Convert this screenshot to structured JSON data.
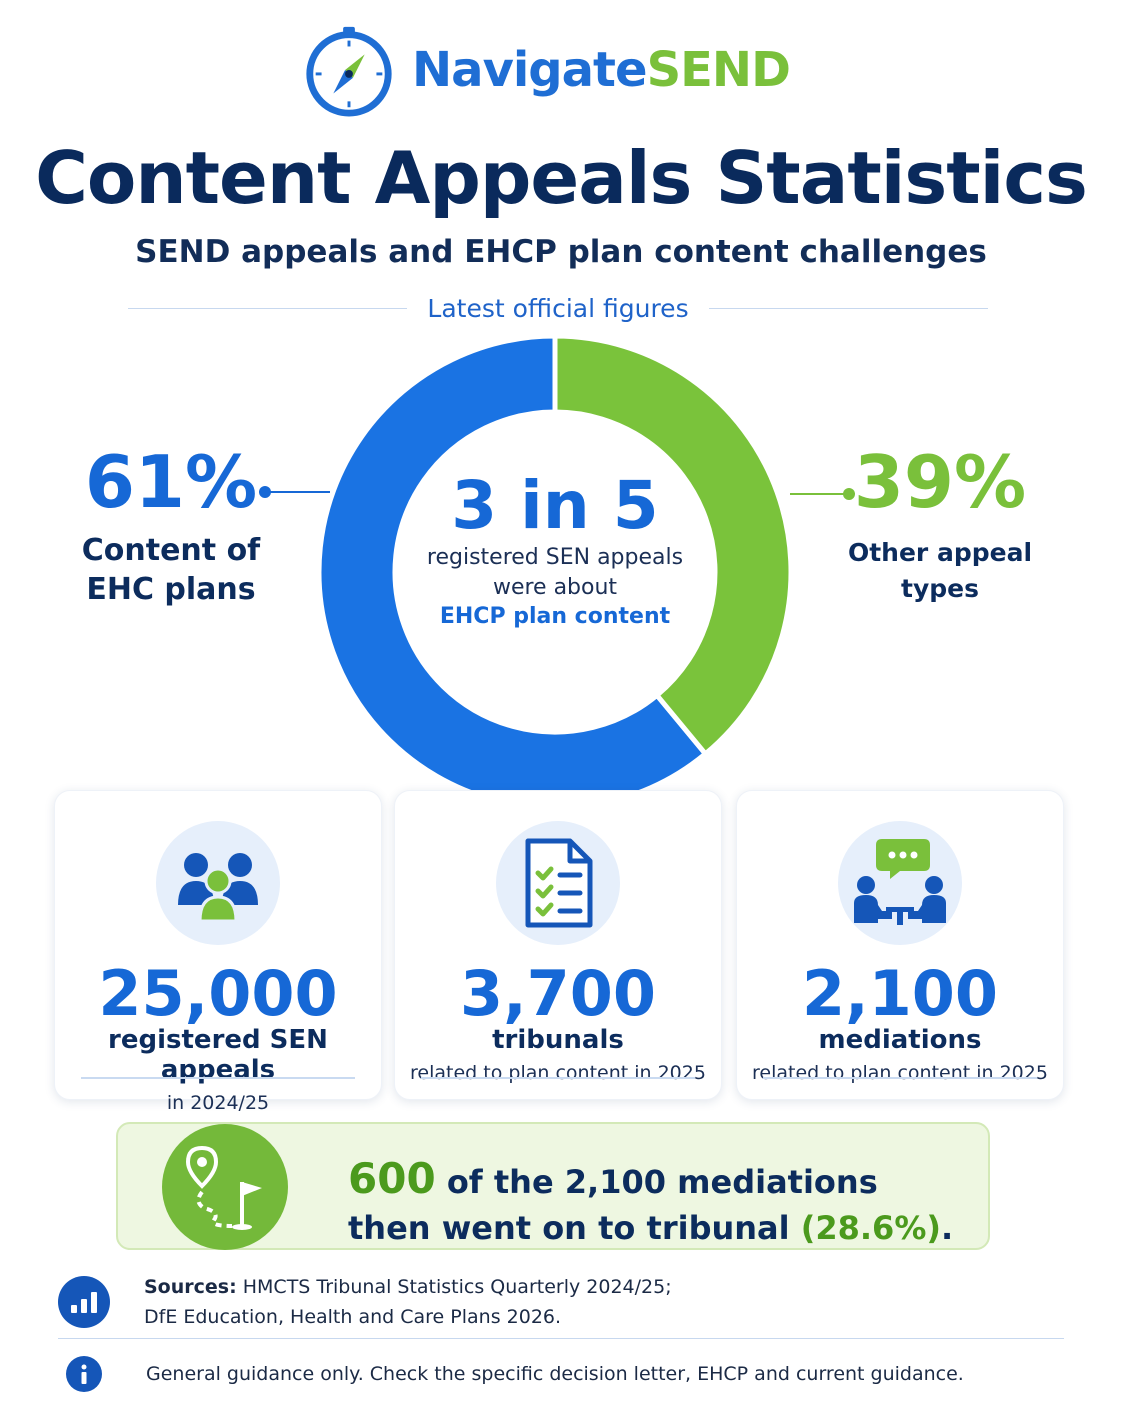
{
  "brand": {
    "word1": "Navigate",
    "word2": "SEND",
    "icon": "compass-icon"
  },
  "header": {
    "title": "Content Appeals Statistics",
    "subtitle": "SEND appeals and EHCP plan content challenges",
    "section_label": "Latest official figures"
  },
  "donut": {
    "center_big": "3 in 5",
    "center_line1": "registered SEN appeals",
    "center_line2": "were about",
    "center_accent": "EHCP plan content",
    "segments": [
      {
        "pct": "61%",
        "label_line1": "Content of",
        "label_line2": "EHC plans",
        "value": 0.61,
        "color": "#1a73e3"
      },
      {
        "pct": "39%",
        "label_line1": "Other appeal",
        "label_line2": "types",
        "value": 0.39,
        "color": "#7ac33b"
      }
    ]
  },
  "cards": [
    {
      "icon": "people-group-icon",
      "number": "25,000",
      "caption": "registered SEN appeals",
      "sub": "in 2024/25"
    },
    {
      "icon": "checklist-document-icon",
      "number": "3,700",
      "caption": "tribunals",
      "sub": "related to plan content in 2025"
    },
    {
      "icon": "mediation-meeting-icon",
      "number": "2,100",
      "caption": "mediations",
      "sub": "related to plan content in 2025"
    }
  ],
  "banner": {
    "icon": "route-flag-icon",
    "highlight": "600",
    "line1_rest": " of the 2,100 mediations",
    "line2_start": "then went on to tribunal ",
    "line2_pct": "(28.6%)",
    "line2_end": "."
  },
  "sources": {
    "icon": "bar-chart-icon",
    "label": "Sources:",
    "line1": " HMCTS Tribunal Statistics Quarterly 2024/25;",
    "line2": "DfE Education, Health and Care Plans 2026."
  },
  "disclaimer": {
    "icon": "info-icon",
    "text": "General guidance only. Check the specific decision letter, EHCP and current guidance."
  },
  "colors": {
    "blue": "#1668d6",
    "green": "#7ac03b",
    "navy": "#0a2a5c"
  }
}
